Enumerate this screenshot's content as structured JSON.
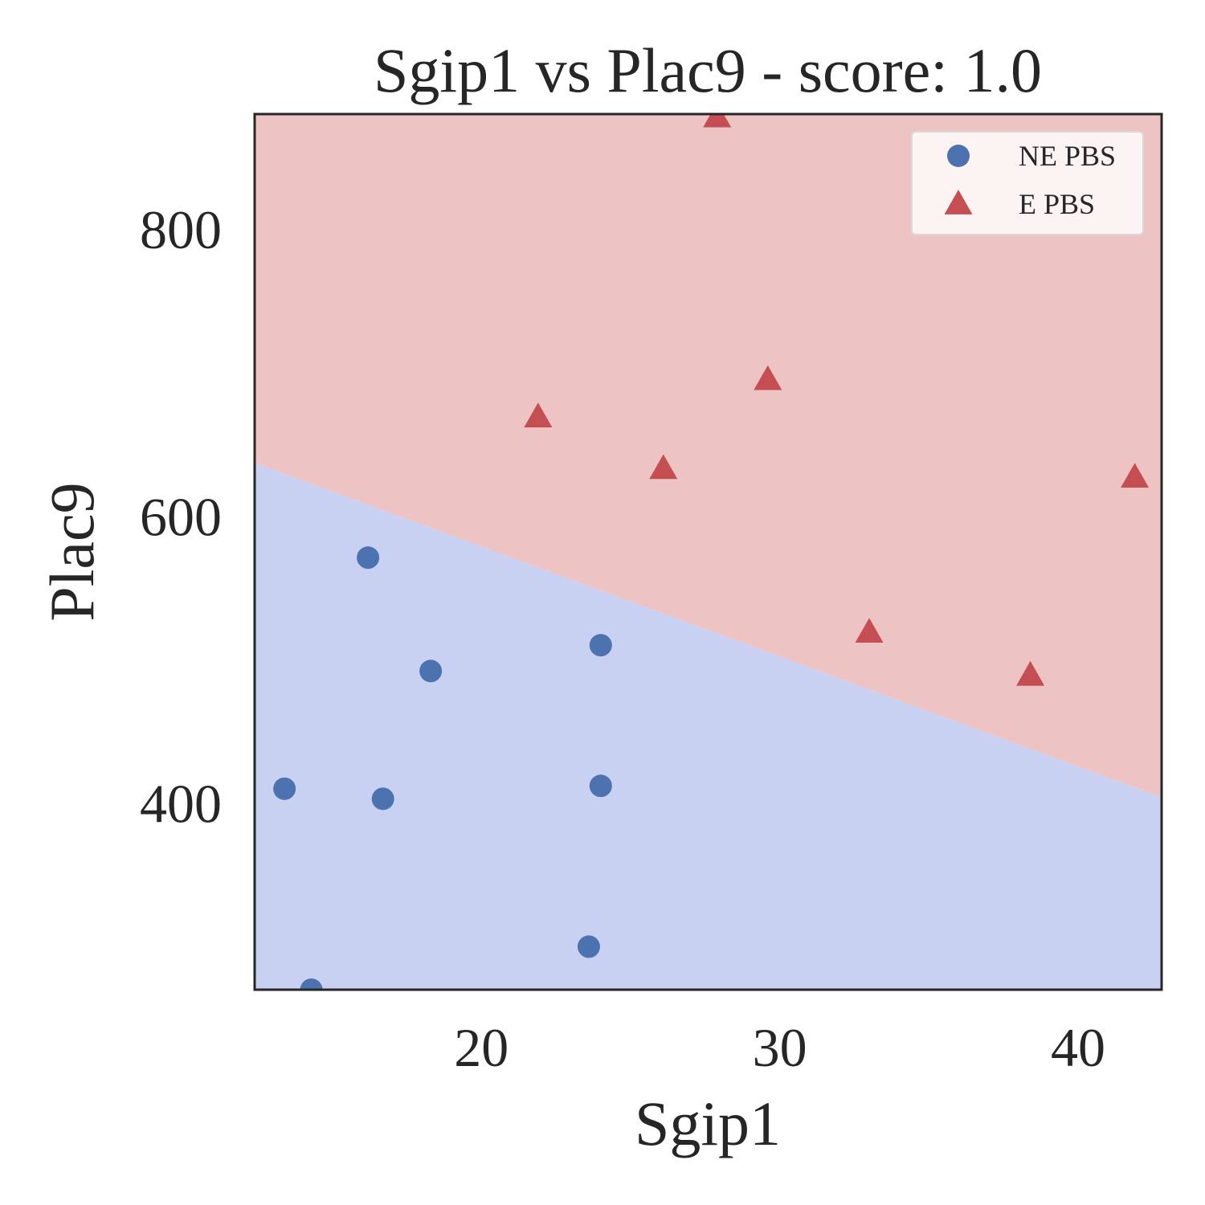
{
  "chart_data": {
    "type": "scatter",
    "title": "Sgip1 vs Plac9 - score: 1.0",
    "xlabel": "Sgip1",
    "ylabel": "Plac9",
    "xlim": [
      12.4,
      42.8
    ],
    "ylim": [
      270,
      880
    ],
    "xticks": [
      20,
      30,
      40
    ],
    "yticks": [
      400,
      600,
      800
    ],
    "grid": false,
    "legend_position": "top-right",
    "decision_boundary": {
      "points": [
        [
          12.4,
          638
        ],
        [
          42.8,
          403
        ]
      ],
      "below_class": "NE PBS",
      "above_class": "E PBS",
      "below_color": "#c9d1f2",
      "above_color": "#edc4c3"
    },
    "series": [
      {
        "name": "NE PBS",
        "marker": "circle",
        "color": "#4c72b0",
        "points": [
          [
            16.2,
            571
          ],
          [
            18.3,
            492
          ],
          [
            24.0,
            510
          ],
          [
            13.4,
            410
          ],
          [
            16.7,
            403
          ],
          [
            24.0,
            412
          ],
          [
            23.6,
            300
          ],
          [
            14.3,
            270
          ]
        ]
      },
      {
        "name": "E PBS",
        "marker": "triangle",
        "color": "#c44e52",
        "points": [
          [
            27.9,
            878
          ],
          [
            29.6,
            695
          ],
          [
            21.9,
            669
          ],
          [
            26.1,
            633
          ],
          [
            41.9,
            627
          ],
          [
            33.0,
            519
          ],
          [
            38.4,
            489
          ]
        ]
      }
    ]
  }
}
